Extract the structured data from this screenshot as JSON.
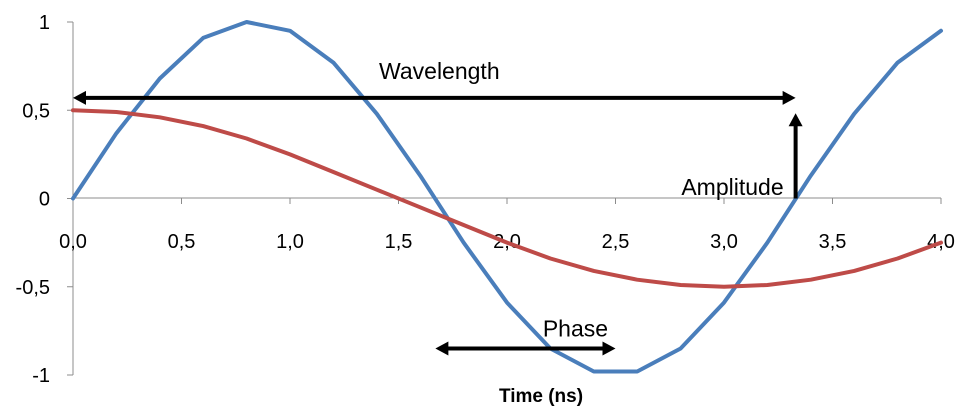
{
  "chart_data": {
    "type": "line",
    "title": "",
    "xlabel": "Time (ns)",
    "ylabel": "",
    "xlim": [
      0,
      4
    ],
    "ylim": [
      -1,
      1
    ],
    "x_ticks": [
      "0,0",
      "0,5",
      "1,0",
      "1,5",
      "2,0",
      "2,5",
      "3,0",
      "3,5",
      "4,0"
    ],
    "y_ticks": [
      "1",
      "0,5",
      "0",
      "-0,5",
      "-1"
    ],
    "grid": false,
    "legend": "none",
    "series": [
      {
        "color": "#4a7ebb",
        "x": [
          0.0,
          0.2,
          0.4,
          0.6,
          0.8,
          1.0,
          1.2,
          1.4,
          1.6,
          1.8,
          2.0,
          2.2,
          2.4,
          2.6,
          2.8,
          3.0,
          3.2,
          3.4,
          3.6,
          3.8,
          4.0
        ],
        "y": [
          0.0,
          0.37,
          0.68,
          0.91,
          1.0,
          0.95,
          0.77,
          0.48,
          0.13,
          -0.25,
          -0.59,
          -0.85,
          -0.98,
          -0.98,
          -0.85,
          -0.59,
          -0.25,
          0.13,
          0.48,
          0.77,
          0.95
        ]
      },
      {
        "color": "#be4b48",
        "x": [
          0.0,
          0.2,
          0.4,
          0.6,
          0.8,
          1.0,
          1.2,
          1.4,
          1.6,
          1.8,
          2.0,
          2.2,
          2.4,
          2.6,
          2.8,
          3.0,
          3.2,
          3.4,
          3.6,
          3.8,
          4.0
        ],
        "y": [
          0.5,
          0.49,
          0.46,
          0.41,
          0.34,
          0.25,
          0.15,
          0.05,
          -0.05,
          -0.15,
          -0.25,
          -0.34,
          -0.41,
          -0.46,
          -0.49,
          -0.5,
          -0.49,
          -0.46,
          -0.41,
          -0.34,
          -0.25
        ]
      }
    ],
    "annotations": [
      {
        "text": "Wavelength",
        "type": "double-arrow",
        "x": [
          0.0,
          3.33
        ],
        "y": 0.57
      },
      {
        "text": "Amplitude",
        "type": "arrow",
        "x": 3.33,
        "y": [
          0.0,
          0.5
        ]
      },
      {
        "text": "Phase",
        "type": "double-arrow",
        "x": [
          1.67,
          2.5
        ],
        "y": -0.85
      }
    ]
  }
}
